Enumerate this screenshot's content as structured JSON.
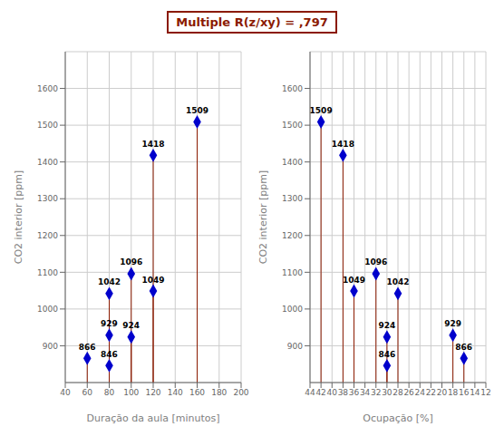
{
  "chart_data": {
    "type": "stem3d",
    "title": "Multiple R(z/xy) = ,797",
    "xlabel": "Duração da aula [minutos]",
    "ylabel": "Ocupação [%]",
    "zlabel": "CO2 interior [ppm]",
    "x": [
      60,
      80,
      80,
      80,
      100,
      100,
      120,
      120,
      160
    ],
    "y": [
      16,
      18,
      30,
      28,
      30,
      32,
      36,
      38,
      42
    ],
    "z": [
      866,
      929,
      846,
      1042,
      924,
      1096,
      1049,
      1418,
      1509
    ],
    "data_labels": true,
    "xlim": [
      40,
      200
    ],
    "ylim": [
      44,
      12
    ],
    "zlim": [
      800,
      1700
    ],
    "xticks": [
      40,
      60,
      80,
      100,
      120,
      140,
      160,
      180,
      200
    ],
    "yticks": [
      12,
      14,
      16,
      18,
      20,
      22,
      24,
      26,
      28,
      30,
      32,
      34,
      36,
      38,
      40,
      42,
      44
    ],
    "zticks": [
      900,
      1000,
      1100,
      1200,
      1300,
      1400,
      1500,
      1600
    ],
    "zbase": 800,
    "marker": "diamond",
    "color": "#0000cc",
    "stem_color": "#8b1a00",
    "annotation_color": "#8b1a00",
    "grid": true
  }
}
